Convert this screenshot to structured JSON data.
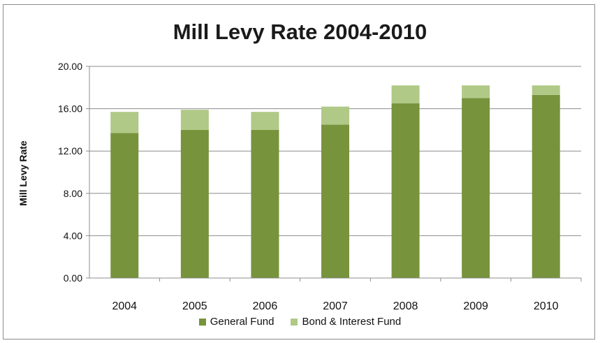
{
  "chart_data": {
    "type": "bar",
    "stacked": true,
    "title": "Mill Levy Rate 2004-2010",
    "xlabel": "",
    "ylabel": "Mill Levy Rate",
    "categories": [
      "2004",
      "2005",
      "2006",
      "2007",
      "2008",
      "2009",
      "2010"
    ],
    "series": [
      {
        "name": "General Fund",
        "values": [
          13.7,
          14.0,
          14.0,
          14.5,
          16.5,
          17.0,
          17.3
        ],
        "color": "#77933c"
      },
      {
        "name": "Bond & Interest Fund",
        "values": [
          2.0,
          1.9,
          1.7,
          1.7,
          1.7,
          1.2,
          0.9
        ],
        "color": "#b0c987"
      }
    ],
    "ylim": [
      0,
      20
    ],
    "yticks": [
      "0.00",
      "4.00",
      "8.00",
      "12.00",
      "16.00",
      "20.00"
    ],
    "grid": true,
    "legend_position": "bottom"
  }
}
